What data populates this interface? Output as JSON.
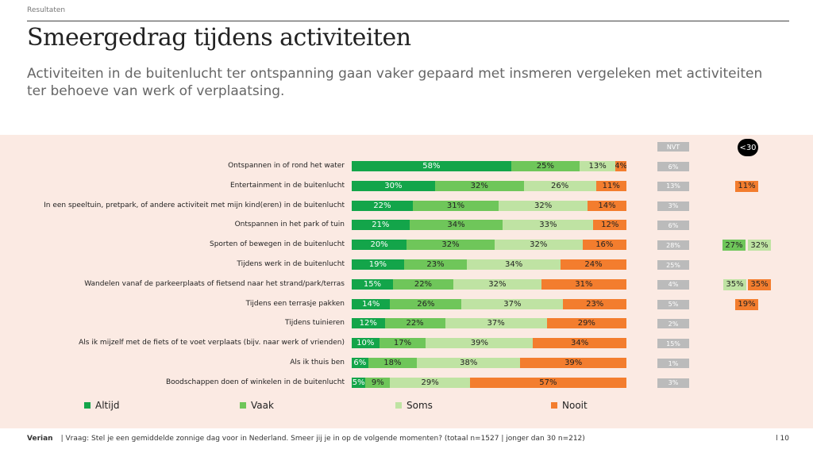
{
  "header": {
    "section": "Resultaten",
    "title": "Smeergedrag tijdens activiteiten",
    "subtitle": "Activiteiten in de buitenlucht ter ontspanning gaan vaker gepaard met insmeren vergeleken met activiteiten ter behoeve van werk of verplaatsing."
  },
  "colors": {
    "altijd": "#13a54a",
    "vaak": "#6fc65a",
    "soms": "#bfe3a3",
    "nooit": "#f37d2e"
  },
  "nvt_header": "NVT",
  "young_header": "<30",
  "chart_data": {
    "type": "bar",
    "stacked": true,
    "orientation": "horizontal",
    "categories": [
      "Ontspannen in of rond het water",
      "Entertainment in de buitenlucht",
      "In een speeltuin, pretpark, of andere activiteit met mijn kind(eren) in de buitenlucht",
      "Ontspannen in het park of tuin",
      "Sporten of bewegen in de buitenlucht",
      "Tijdens werk in de buitenlucht",
      "Wandelen vanaf de parkeerplaats of fietsend naar het strand/park/terras",
      "Tijdens een terrasje pakken",
      "Tijdens tuinieren",
      "Als ik mijzelf met de fiets of te voet verplaats (bijv. naar werk of vrienden)",
      "Als ik thuis ben",
      "Boodschappen doen of winkelen in de buitenlucht"
    ],
    "series": [
      {
        "name": "Altijd",
        "values": [
          58,
          30,
          22,
          21,
          20,
          19,
          15,
          14,
          12,
          10,
          6,
          5
        ]
      },
      {
        "name": "Vaak",
        "values": [
          25,
          32,
          31,
          34,
          32,
          23,
          22,
          26,
          22,
          17,
          18,
          9
        ]
      },
      {
        "name": "Soms",
        "values": [
          13,
          26,
          32,
          33,
          32,
          34,
          32,
          37,
          37,
          39,
          38,
          29
        ]
      },
      {
        "name": "Nooit",
        "values": [
          4,
          11,
          14,
          12,
          16,
          24,
          31,
          23,
          29,
          34,
          39,
          57
        ]
      }
    ],
    "nvt": [
      "6%",
      "13%",
      "3%",
      "6%",
      "28%",
      "25%",
      "4%",
      "5%",
      "2%",
      "15%",
      "1%",
      "3%"
    ],
    "young_under_30": [
      {
        "row": 1,
        "series": "Nooit",
        "label": "11%"
      },
      {
        "row": 4,
        "series": "Vaak",
        "label": "27%"
      },
      {
        "row": 4,
        "series": "Soms",
        "label": "32%"
      },
      {
        "row": 6,
        "series": "Soms",
        "label": "35%"
      },
      {
        "row": 6,
        "series": "Nooit",
        "label": "35%"
      },
      {
        "row": 7,
        "series": "Nooit",
        "label": "19%"
      }
    ]
  },
  "footer": {
    "brand": "Verian",
    "note": "|   Vraag: Stel je een gemiddelde zonnige dag voor in Nederland. Smeer jij je in op de volgende momenten? (totaal n=1527 | jonger dan 30 n=212)",
    "page": "l  10"
  }
}
